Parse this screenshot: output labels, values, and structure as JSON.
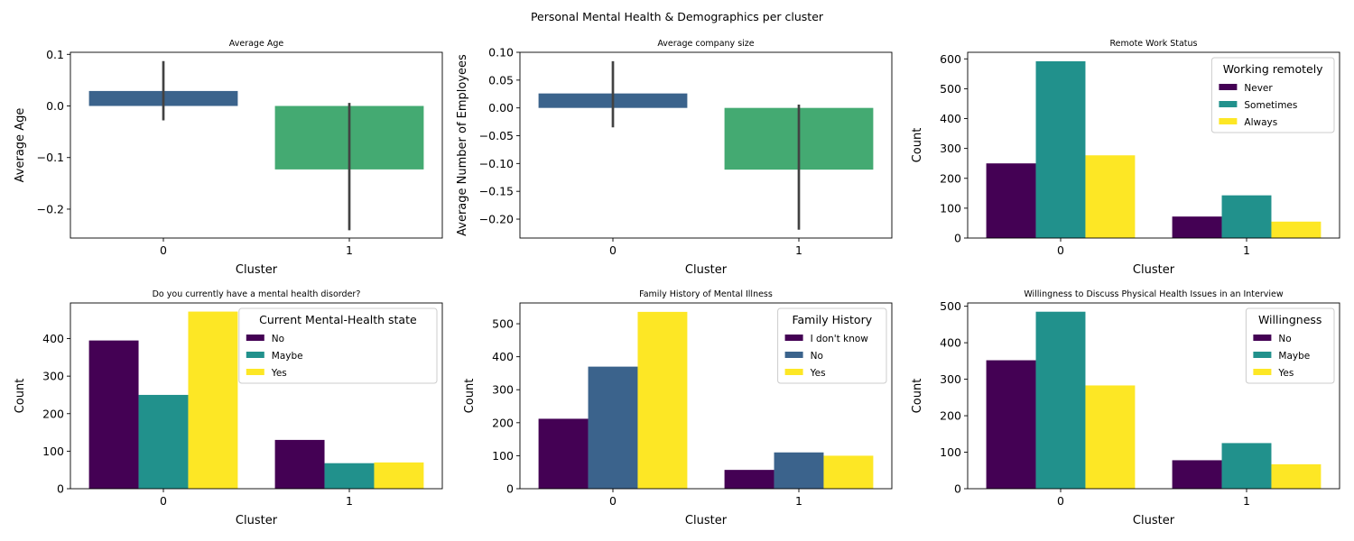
{
  "figure": {
    "suptitle": "Personal Mental Health & Demographics per cluster"
  },
  "chart_data": [
    {
      "type": "bar",
      "title": "Average Age",
      "xlabel": "Cluster",
      "ylabel": "Average Age",
      "categories": [
        "0",
        "1"
      ],
      "values": [
        0.029,
        -0.123
      ],
      "error_bars": [
        [
          -0.028,
          0.087
        ],
        [
          -0.241,
          0.006
        ]
      ],
      "colors": [
        "#3b638c",
        "#44aa72"
      ],
      "ylim": [
        -0.256,
        0.104
      ],
      "yticks": [
        0.1,
        0.0,
        -0.1,
        -0.2
      ],
      "ytick_labels": [
        "0.1",
        "0.0",
        "−0.1",
        "−0.2"
      ]
    },
    {
      "type": "bar",
      "title": "Average company size",
      "xlabel": "Cluster",
      "ylabel": "Average Number of Employees",
      "categories": [
        "0",
        "1"
      ],
      "values": [
        0.026,
        -0.111
      ],
      "error_bars": [
        [
          -0.035,
          0.084
        ],
        [
          -0.219,
          0.006
        ]
      ],
      "colors": [
        "#3b638c",
        "#44aa72"
      ],
      "ylim": [
        -0.234,
        0.1
      ],
      "yticks": [
        0.1,
        0.05,
        0.0,
        -0.05,
        -0.1,
        -0.15,
        -0.2
      ],
      "ytick_labels": [
        "0.10",
        "0.05",
        "0.00",
        "−0.05",
        "−0.10",
        "−0.15",
        "−0.20"
      ]
    },
    {
      "type": "grouped_bar",
      "title": "Remote Work Status",
      "xlabel": "Cluster",
      "ylabel": "Count",
      "categories": [
        "0",
        "1"
      ],
      "legend": {
        "title": "Working remotely",
        "placement": "upper-right"
      },
      "series": [
        {
          "name": "Never",
          "color": "#440154",
          "values": [
            250,
            72
          ]
        },
        {
          "name": "Sometimes",
          "color": "#21918c",
          "values": [
            592,
            143
          ]
        },
        {
          "name": "Always",
          "color": "#fde725",
          "values": [
            277,
            55
          ]
        }
      ],
      "ylim": [
        0,
        622
      ],
      "yticks": [
        0,
        100,
        200,
        300,
        400,
        500,
        600
      ],
      "ytick_labels": [
        "0",
        "100",
        "200",
        "300",
        "400",
        "500",
        "600"
      ]
    },
    {
      "type": "grouped_bar",
      "title": "Do you currently have a mental health disorder?",
      "xlabel": "Cluster",
      "ylabel": "Count",
      "categories": [
        "0",
        "1"
      ],
      "legend": {
        "title": "Current Mental-Health state",
        "placement": "upper-right"
      },
      "series": [
        {
          "name": "No",
          "color": "#440154",
          "values": [
            395,
            130
          ]
        },
        {
          "name": "Maybe",
          "color": "#21918c",
          "values": [
            250,
            68
          ]
        },
        {
          "name": "Yes",
          "color": "#fde725",
          "values": [
            472,
            70
          ]
        }
      ],
      "ylim": [
        0,
        495
      ],
      "yticks": [
        0,
        100,
        200,
        300,
        400
      ],
      "ytick_labels": [
        "0",
        "100",
        "200",
        "300",
        "400"
      ]
    },
    {
      "type": "grouped_bar",
      "title": "Family History of Mental Illness",
      "xlabel": "Cluster",
      "ylabel": "Count",
      "categories": [
        "0",
        "1"
      ],
      "legend": {
        "title": "Family History",
        "placement": "upper-right"
      },
      "series": [
        {
          "name": "I don't know",
          "color": "#440154",
          "values": [
            212,
            57
          ]
        },
        {
          "name": "No",
          "color": "#3b638c",
          "values": [
            370,
            110
          ]
        },
        {
          "name": "Yes",
          "color": "#fde725",
          "values": [
            536,
            100
          ]
        }
      ],
      "ylim": [
        0,
        563
      ],
      "yticks": [
        0,
        100,
        200,
        300,
        400,
        500
      ],
      "ytick_labels": [
        "0",
        "100",
        "200",
        "300",
        "400",
        "500"
      ]
    },
    {
      "type": "grouped_bar",
      "title": "Willingness to Discuss Physical Health Issues in an Interview",
      "xlabel": "Cluster",
      "ylabel": "Count",
      "categories": [
        "0",
        "1"
      ],
      "legend": {
        "title": "Willingness",
        "placement": "upper-right"
      },
      "series": [
        {
          "name": "No",
          "color": "#440154",
          "values": [
            352,
            78
          ]
        },
        {
          "name": "Maybe",
          "color": "#21918c",
          "values": [
            485,
            125
          ]
        },
        {
          "name": "Yes",
          "color": "#fde725",
          "values": [
            283,
            67
          ]
        }
      ],
      "ylim": [
        0,
        509
      ],
      "yticks": [
        0,
        100,
        200,
        300,
        400,
        500
      ],
      "ytick_labels": [
        "0",
        "100",
        "200",
        "300",
        "400",
        "500"
      ]
    }
  ]
}
